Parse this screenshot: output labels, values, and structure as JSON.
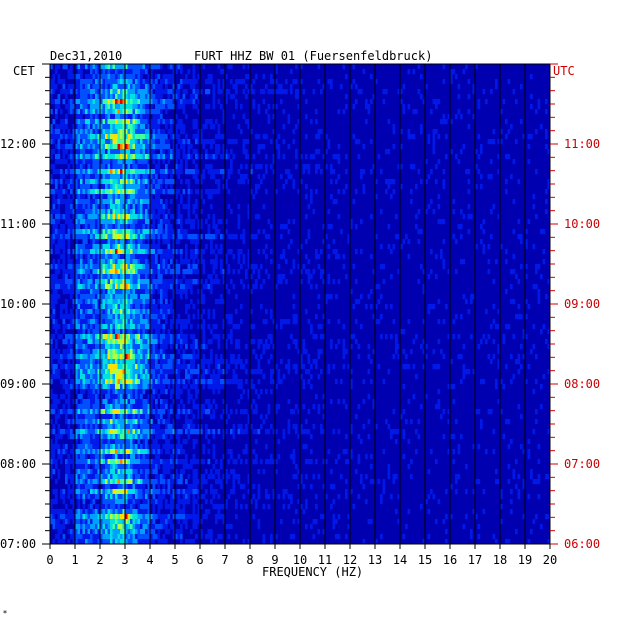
{
  "chart_data": {
    "type": "heatmap",
    "date": "Dec31,2010",
    "title": "FURT HHZ BW 01 (Fuersenfeldbruck)",
    "xlabel": "FREQUENCY (HZ)",
    "left_zone": "CET",
    "right_zone": "UTC",
    "xlim": [
      0,
      20
    ],
    "x_ticks": [
      "0",
      "1",
      "2",
      "3",
      "4",
      "5",
      "6",
      "7",
      "8",
      "9",
      "10",
      "11",
      "12",
      "13",
      "14",
      "15",
      "16",
      "17",
      "18",
      "19",
      "20"
    ],
    "left_time_labels": [
      "12:00",
      "11:00",
      "10:00",
      "09:00",
      "08:00",
      "07:00"
    ],
    "right_time_labels": [
      "11:00",
      "10:00",
      "09:00",
      "08:00",
      "07:00",
      "06:00"
    ],
    "time_range_cet": [
      "07:00",
      "13:00"
    ],
    "energy_band_hz": [
      1,
      4
    ],
    "energy_peak_hz": 2.8,
    "grid": true,
    "colors": {
      "background": "#0000b0",
      "grid": "#000000",
      "utc_label": "#cc0000",
      "text": "#000000"
    }
  },
  "footer_mark": "*"
}
